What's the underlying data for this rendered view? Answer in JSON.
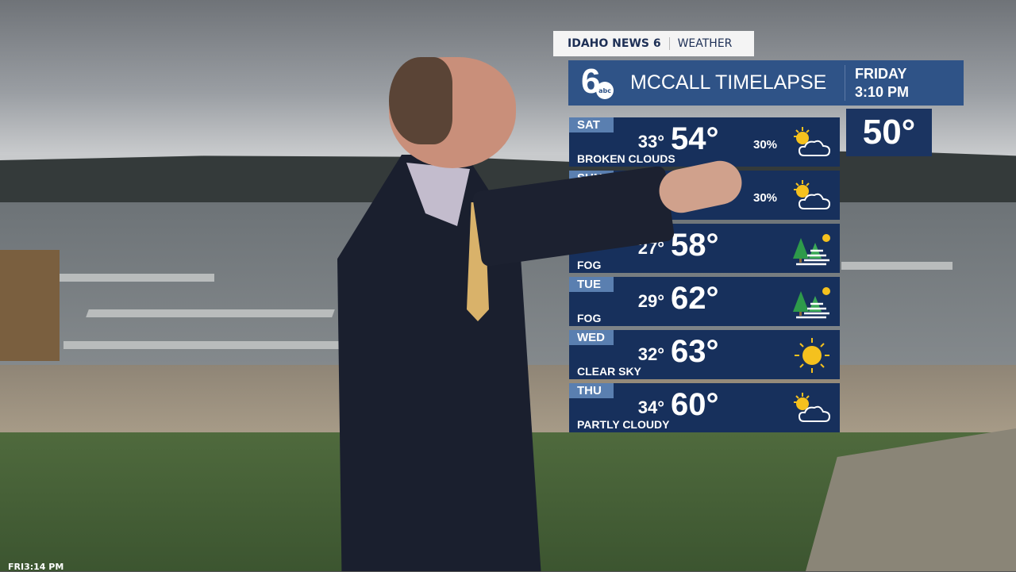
{
  "bug": {
    "station": "IDAHO NEWS 6",
    "section": "WEATHER"
  },
  "header": {
    "logo": "6 abc",
    "title": "MCCALL TIMELAPSE",
    "day": "FRIDAY",
    "time": "3:10 PM"
  },
  "current_temp": "50°",
  "forecast": [
    {
      "day": "SAT",
      "low": "33°",
      "high": "54°",
      "condition": "BROKEN CLOUDS",
      "precip": "30%",
      "icon": "partly-cloudy-icon"
    },
    {
      "day": "SUN",
      "low": "",
      "high": "",
      "condition": "",
      "precip": "30%",
      "icon": "partly-cloudy-icon"
    },
    {
      "day": "",
      "low": "27°",
      "high": "58°",
      "condition": "FOG",
      "precip": "",
      "icon": "fog-icon"
    },
    {
      "day": "TUE",
      "low": "29°",
      "high": "62°",
      "condition": "FOG",
      "precip": "",
      "icon": "fog-icon"
    },
    {
      "day": "WED",
      "low": "32°",
      "high": "63°",
      "condition": "CLEAR SKY",
      "precip": "",
      "icon": "sunny-icon"
    },
    {
      "day": "THU",
      "low": "34°",
      "high": "60°",
      "condition": "PARTLY CLOUDY",
      "precip": "",
      "icon": "partly-cloudy-icon"
    }
  ],
  "timestamp": "FRI3:14 PM",
  "colors": {
    "header": "#2f5387",
    "row": "#17305c",
    "day_tab": "#5a7fb0",
    "sun": "#f5c11e",
    "tree": "#2e9a4a"
  }
}
